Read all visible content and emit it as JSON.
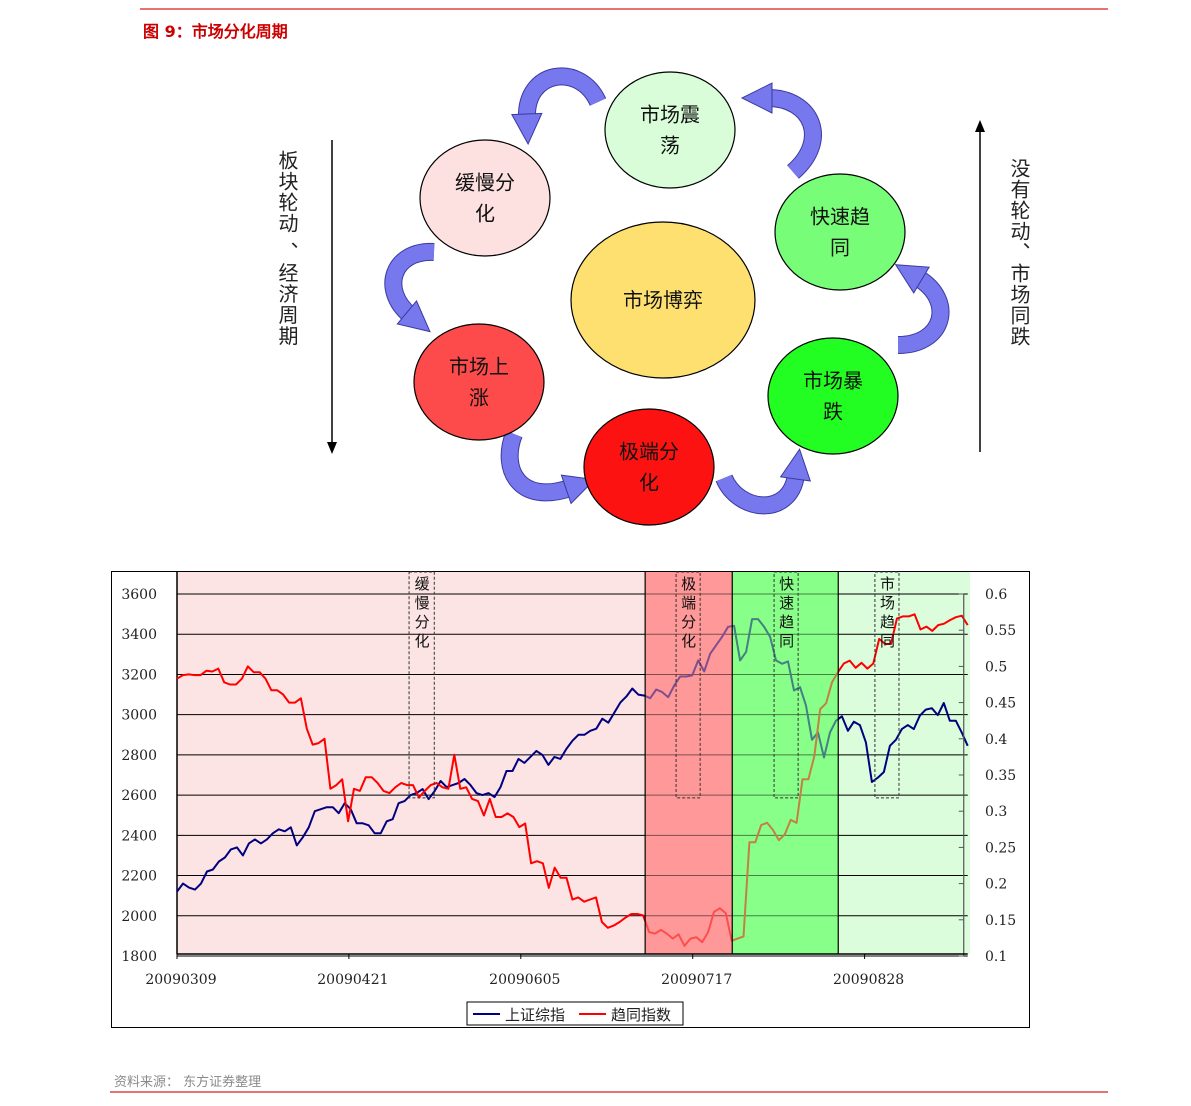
{
  "figure": {
    "title": "图 9：市场分化周期",
    "source": "资料来源：  东方证券整理"
  },
  "diagram": {
    "center": {
      "lines": [
        "市场博弈"
      ],
      "color": "#fde070"
    },
    "nodes": [
      {
        "id": "market-oscillation",
        "lines": [
          "市场震",
          "荡"
        ],
        "color": "#d9fdd9"
      },
      {
        "id": "slow-divergence",
        "lines": [
          "缓慢分",
          "化"
        ],
        "color": "#fde0e0"
      },
      {
        "id": "market-rise",
        "lines": [
          "市场上",
          "涨"
        ],
        "color": "#fd4a4a"
      },
      {
        "id": "extreme-divergence",
        "lines": [
          "极端分",
          "化"
        ],
        "color": "#fd1212"
      },
      {
        "id": "market-crash",
        "lines": [
          "市场暴",
          "跌"
        ],
        "color": "#22fd22"
      },
      {
        "id": "fast-convergence",
        "lines": [
          "快速趋",
          "同"
        ],
        "color": "#77fd77"
      }
    ],
    "left_axis_text": "板块轮动 、经济周期",
    "right_axis_text": "没有轮动、市场同跌",
    "arrow_color": "#7777ee"
  },
  "chart_data": {
    "type": "line",
    "x_ticks": [
      {
        "label": "20090309",
        "day": 0
      },
      {
        "label": "20090421",
        "day": 30
      },
      {
        "label": "20090605",
        "day": 60
      },
      {
        "label": "20090717",
        "day": 90
      },
      {
        "label": "20090828",
        "day": 120
      }
    ],
    "x_range_days": [
      0,
      138
    ],
    "y_left": {
      "min": 1800,
      "max": 3600,
      "ticks": [
        1800,
        2000,
        2200,
        2400,
        2600,
        2800,
        3000,
        3200,
        3400,
        3600
      ]
    },
    "y_right": {
      "min": 0.1,
      "max": 0.6,
      "ticks": [
        "0.1",
        "0.15",
        "0.2",
        "0.25",
        "0.3",
        "0.35",
        "0.4",
        "0.45",
        "0.5",
        "0.55",
        "0.6"
      ]
    },
    "grid": true,
    "legend_position": "bottom",
    "series": [
      {
        "name": "上证综指",
        "axis": "left",
        "color": "#000080",
        "values": [
          2120,
          2160,
          2140,
          2130,
          2160,
          2220,
          2230,
          2270,
          2290,
          2330,
          2340,
          2300,
          2360,
          2380,
          2360,
          2380,
          2410,
          2430,
          2420,
          2440,
          2350,
          2390,
          2440,
          2520,
          2530,
          2540,
          2540,
          2510,
          2560,
          2530,
          2460,
          2460,
          2450,
          2410,
          2410,
          2470,
          2480,
          2560,
          2570,
          2600,
          2610,
          2630,
          2580,
          2620,
          2670,
          2640,
          2650,
          2660,
          2680,
          2650,
          2610,
          2600,
          2610,
          2590,
          2640,
          2720,
          2720,
          2780,
          2760,
          2790,
          2820,
          2800,
          2750,
          2790,
          2780,
          2830,
          2870,
          2900,
          2900,
          2920,
          2930,
          2980,
          2960,
          3010,
          3060,
          3090,
          3130,
          3100,
          3095,
          3082,
          3125,
          3112,
          3087,
          3145,
          3190,
          3190,
          3195,
          3270,
          3215,
          3303,
          3345,
          3387,
          3437,
          3442,
          3270,
          3312,
          3475,
          3475,
          3437,
          3387,
          3270,
          3253,
          3265,
          3120,
          3137,
          3045,
          2875,
          2912,
          2787,
          2912,
          2970,
          2992,
          2920,
          2965,
          2948,
          2862,
          2665,
          2687,
          2715,
          2845,
          2875,
          2928,
          2948,
          2928,
          2995,
          3025,
          3032,
          2998,
          3058,
          2970,
          2970,
          2912,
          2845
        ]
      },
      {
        "name": "趋同指数",
        "axis": "right",
        "color": "#ff0000",
        "values": [
          0.483,
          0.488,
          0.489,
          0.488,
          0.488,
          0.494,
          0.493,
          0.497,
          0.478,
          0.475,
          0.475,
          0.483,
          0.5,
          0.492,
          0.492,
          0.483,
          0.467,
          0.467,
          0.461,
          0.45,
          0.45,
          0.456,
          0.414,
          0.392,
          0.394,
          0.4,
          0.331,
          0.336,
          0.344,
          0.286,
          0.331,
          0.328,
          0.347,
          0.347,
          0.339,
          0.328,
          0.325,
          0.333,
          0.339,
          0.336,
          0.336,
          0.319,
          0.328,
          0.336,
          0.339,
          0.333,
          0.331,
          0.378,
          0.331,
          0.333,
          0.317,
          0.314,
          0.294,
          0.317,
          0.292,
          0.292,
          0.297,
          0.292,
          0.278,
          0.283,
          0.228,
          0.231,
          0.228,
          0.194,
          0.222,
          0.208,
          0.208,
          0.178,
          0.181,
          0.175,
          0.178,
          0.181,
          0.147,
          0.139,
          0.142,
          0.147,
          0.153,
          0.158,
          0.158,
          0.156,
          0.133,
          0.131,
          0.136,
          0.131,
          0.124,
          0.13,
          0.114,
          0.124,
          0.126,
          0.119,
          0.133,
          0.161,
          0.166,
          0.159,
          0.121,
          0.124,
          0.127,
          0.257,
          0.257,
          0.281,
          0.284,
          0.274,
          0.26,
          0.268,
          0.288,
          0.284,
          0.344,
          0.344,
          0.376,
          0.441,
          0.449,
          0.478,
          0.492,
          0.504,
          0.508,
          0.498,
          0.505,
          0.497,
          0.504,
          0.538,
          0.531,
          0.531,
          0.566,
          0.569,
          0.569,
          0.572,
          0.551,
          0.555,
          0.549,
          0.557,
          0.559,
          0.564,
          0.568,
          0.57,
          0.557
        ]
      }
    ],
    "phase_bands": [
      {
        "from_day": 0,
        "to_day": 81.7,
        "color": "#fde4e4",
        "overlay": false
      },
      {
        "from_day": 81.7,
        "to_day": 96.9,
        "color": "#ff9999",
        "overlay": true
      },
      {
        "from_day": 96.9,
        "to_day": 115.4,
        "color": "#88ff88",
        "overlay": true
      },
      {
        "from_day": 115.4,
        "to_day": 138.4,
        "color": "#dcfddc",
        "overlay": false
      }
    ],
    "annotations": [
      {
        "text": "缓慢分化",
        "from_day": 40.5,
        "to_day": 44.9,
        "bottom_value": 2586
      },
      {
        "text": "极端分化",
        "from_day": 87.1,
        "to_day": 91.3,
        "bottom_value": 2586
      },
      {
        "text": "快速趋同",
        "from_day": 104.2,
        "to_day": 108.4,
        "bottom_value": 2586
      },
      {
        "text": "市场趋同",
        "from_day": 121.8,
        "to_day": 126.0,
        "bottom_value": 2586
      }
    ]
  }
}
